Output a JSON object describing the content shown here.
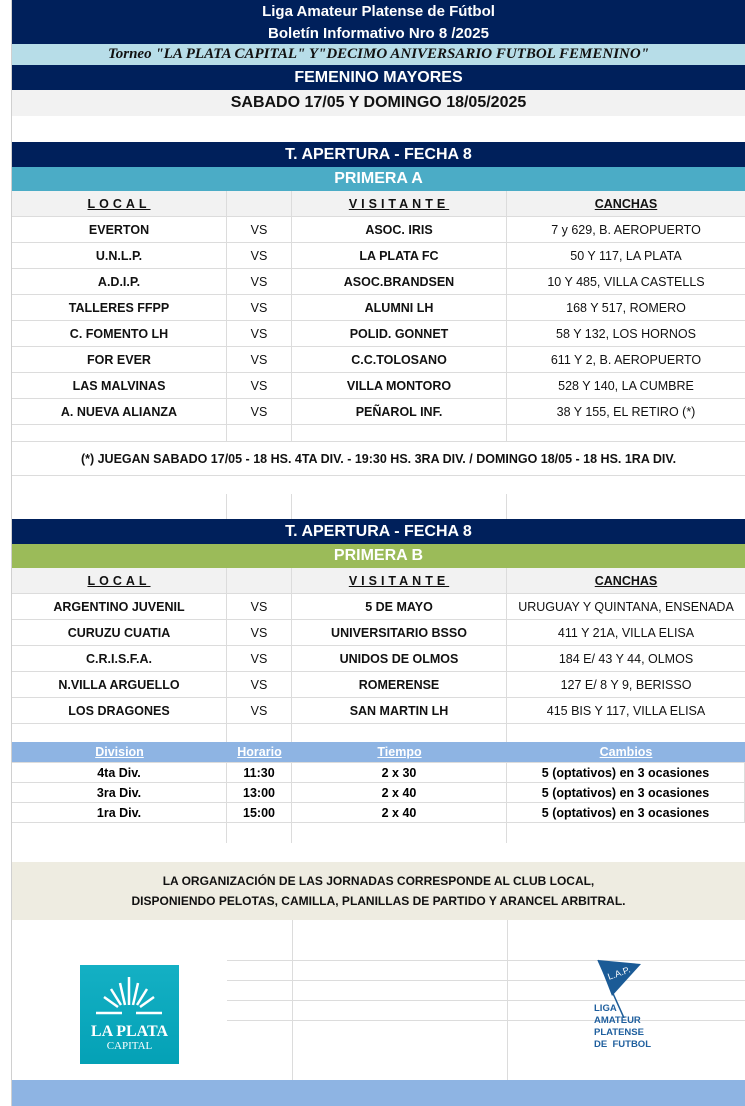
{
  "header": {
    "title": "Liga Amateur Platense de Fútbol",
    "subtitle": "Boletín Informativo Nro 8 /2025",
    "torneo": "Torneo \"LA PLATA CAPITAL\" Y\"DECIMO ANIVERSARIO FUTBOL FEMENINO\"",
    "category": "FEMENINO MAYORES",
    "dates": "SABADO 17/05 Y DOMINGO 18/05/2025"
  },
  "columns": {
    "local": "LOCAL",
    "visitante": "VISITANTE",
    "canchas": "CANCHAS"
  },
  "primera_a": {
    "fecha": "T. APERTURA - FECHA 8",
    "name": "PRIMERA A",
    "color": "#4bacc6",
    "matches": [
      {
        "local": "EVERTON",
        "vs": "VS",
        "visitante": "ASOC. IRIS",
        "cancha": "7 y 629, B. AEROPUERTO"
      },
      {
        "local": "U.N.L.P.",
        "vs": "VS",
        "visitante": "LA PLATA FC",
        "cancha": "50 Y 117, LA PLATA"
      },
      {
        "local": "A.D.I.P.",
        "vs": "VS",
        "visitante": "ASOC.BRANDSEN",
        "cancha": "10 Y 485, VILLA CASTELLS"
      },
      {
        "local": "TALLERES FFPP",
        "vs": "VS",
        "visitante": "ALUMNI LH",
        "cancha": "168 Y 517, ROMERO"
      },
      {
        "local": "C. FOMENTO LH",
        "vs": "VS",
        "visitante": "POLID. GONNET",
        "cancha": "58 Y 132, LOS HORNOS"
      },
      {
        "local": "FOR EVER",
        "vs": "VS",
        "visitante": "C.C.TOLOSANO",
        "cancha": "611 Y 2, B. AEROPUERTO"
      },
      {
        "local": "LAS MALVINAS",
        "vs": "VS",
        "visitante": "VILLA MONTORO",
        "cancha": "528 Y 140, LA CUMBRE"
      },
      {
        "local": "A. NUEVA ALIANZA",
        "vs": "VS",
        "visitante": "PEÑAROL INF.",
        "cancha": "38 Y 155, EL RETIRO (*)"
      }
    ],
    "note": "(*) JUEGAN SABADO 17/05 - 18 HS. 4TA DIV. - 19:30 HS. 3RA DIV. / DOMINGO 18/05 - 18 HS. 1RA DIV."
  },
  "primera_b": {
    "fecha": "T. APERTURA - FECHA 8",
    "name": "PRIMERA B",
    "color": "#9bbb59",
    "matches": [
      {
        "local": "ARGENTINO JUVENIL",
        "vs": "VS",
        "visitante": "5 DE MAYO",
        "cancha": "URUGUAY Y QUINTANA, ENSENADA"
      },
      {
        "local": "CURUZU CUATIA",
        "vs": "VS",
        "visitante": "UNIVERSITARIO BSSO",
        "cancha": "411 Y 21A, VILLA ELISA"
      },
      {
        "local": "C.R.I.S.F.A.",
        "vs": "VS",
        "visitante": "UNIDOS DE OLMOS",
        "cancha": "184 E/ 43 Y 44, OLMOS"
      },
      {
        "local": "N.VILLA ARGUELLO",
        "vs": "VS",
        "visitante": "ROMERENSE",
        "cancha": "127 E/ 8 Y 9, BERISSO"
      },
      {
        "local": "LOS DRAGONES",
        "vs": "VS",
        "visitante": "SAN MARTIN LH",
        "cancha": "415 BIS Y 117, VILLA ELISA"
      }
    ]
  },
  "divisions": {
    "headers": [
      "Division",
      "Horario",
      "Tiempo",
      "Cambios"
    ],
    "rows": [
      [
        "4ta Div.",
        "11:30",
        "2 x 30",
        "5 (optativos) en 3 ocasiones"
      ],
      [
        "3ra Div.",
        "13:00",
        "2 x 40",
        "5 (optativos) en 3 ocasiones"
      ],
      [
        "1ra Div.",
        "15:00",
        "2 x 40",
        "5 (optativos) en 3 ocasiones"
      ]
    ]
  },
  "organization": [
    "LA ORGANIZACIÓN DE LAS JORNADAS CORRESPONDE AL CLUB LOCAL,",
    "DISPONIENDO PELOTAS, CAMILLA, PLANILLAS DE PARTIDO Y ARANCEL ARBITRAL."
  ],
  "logos": {
    "la_plata": [
      "LA PLATA",
      "CAPITAL"
    ],
    "lap": {
      "flag": "L.A.P.",
      "text": [
        "LIGA",
        "AMATEUR",
        "PLATENSE",
        "DE  FUTBOL"
      ]
    }
  }
}
